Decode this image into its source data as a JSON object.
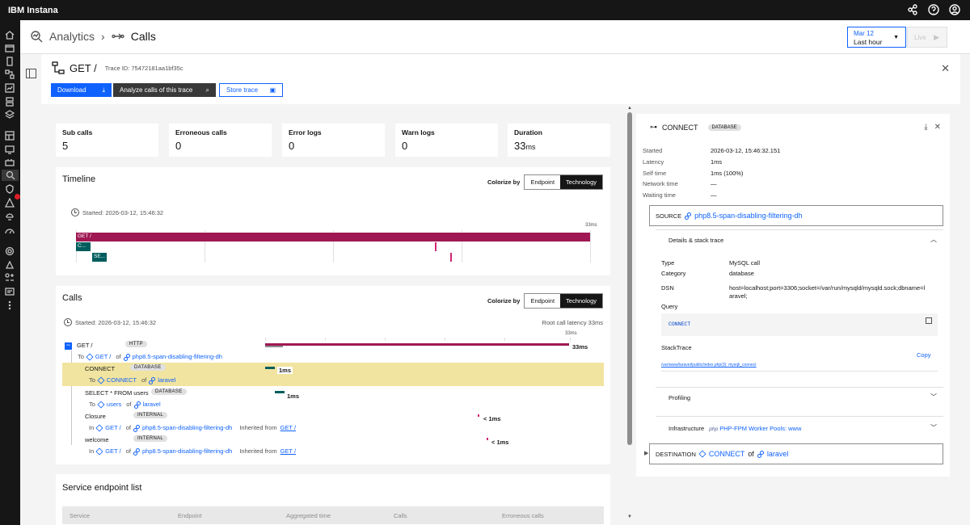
{
  "topbar": {
    "brand": "IBM Instana",
    "icons": [
      "share-icon",
      "help-icon",
      "user-icon"
    ]
  },
  "sidenav": {
    "alert_badge": "6"
  },
  "breadcrumb": {
    "parent": "Analytics",
    "current": "Calls"
  },
  "time_picker": {
    "date": "Mar 12",
    "range": "Last hour"
  },
  "live_button": {
    "label": "Live"
  },
  "trace": {
    "title": "GET /",
    "trace_id": "Trace ID: 75472181aa1bf35c",
    "buttons": {
      "download": "Download",
      "analyze": "Analyze calls of this trace",
      "store": "Store trace"
    }
  },
  "stats": [
    {
      "label": "Sub calls",
      "value": "5",
      "unit": ""
    },
    {
      "label": "Erroneous calls",
      "value": "0",
      "unit": ""
    },
    {
      "label": "Error logs",
      "value": "0",
      "unit": ""
    },
    {
      "label": "Warn logs",
      "value": "0",
      "unit": ""
    },
    {
      "label": "Duration",
      "value": "33",
      "unit": "ms"
    }
  ],
  "timeline": {
    "title": "Timeline",
    "colorize_label": "Colorize by",
    "colorize_options": [
      "Endpoint",
      "Technology"
    ],
    "colorize_selected": "Technology",
    "started": "Started: 2026-03-12, 15:46:32",
    "axis_max": "33ms",
    "bars": [
      {
        "label": "GET /",
        "color": "#9f1853"
      },
      {
        "label": "C...",
        "color": "#005d5d"
      },
      {
        "label": "SE...",
        "color": "#005d5d"
      }
    ]
  },
  "calls": {
    "title": "Calls",
    "colorize_label": "Colorize by",
    "colorize_options": [
      "Endpoint",
      "Technology"
    ],
    "started": "Started: 2026-03-12, 15:46:32",
    "root_latency": "Root call latency 33ms",
    "axis_max": "33ms",
    "rows": [
      {
        "name": "GET /",
        "tag": "HTTP",
        "prefix": "To",
        "endpoint": "GET /",
        "of": "of",
        "service": "php8.5-span-disabling-filtering-dh",
        "latency": "33ms",
        "inherited_label": "",
        "inherited_link": ""
      },
      {
        "name": "CONNECT",
        "tag": "DATABASE",
        "prefix": "To",
        "endpoint": "CONNECT",
        "of": "of",
        "service": "laravel",
        "latency": "1ms",
        "inherited_label": "",
        "inherited_link": ""
      },
      {
        "name": "SELECT * FROM users",
        "tag": "DATABASE",
        "prefix": "To",
        "endpoint": "users",
        "of": "of",
        "service": "laravel",
        "latency": "1ms",
        "inherited_label": "",
        "inherited_link": ""
      },
      {
        "name": "Closure",
        "tag": "INTERNAL",
        "prefix": "In",
        "endpoint": "GET /",
        "of": "of",
        "service": "php8.5-span-disabling-filtering-dh",
        "latency": "< 1ms",
        "inherited_label": "Inherited from",
        "inherited_link": "GET /"
      },
      {
        "name": "welcome",
        "tag": "INTERNAL",
        "prefix": "In",
        "endpoint": "GET /",
        "of": "of",
        "service": "php8.5-span-disabling-filtering-dh",
        "latency": "< 1ms",
        "inherited_label": "Inherited from",
        "inherited_link": "GET /"
      }
    ]
  },
  "service_endpoint_list": {
    "title": "Service endpoint list",
    "columns": [
      "Service",
      "Endpoint",
      "Aggregated time",
      "Calls",
      "Erroneous calls"
    ]
  },
  "detail": {
    "title": "CONNECT",
    "tag": "DATABASE",
    "fields": [
      {
        "k": "Started",
        "v": "2026-03-12, 15:46:32.151"
      },
      {
        "k": "Latency",
        "v": "1ms"
      },
      {
        "k": "Self time",
        "v": "1ms (100%)"
      },
      {
        "k": "Network time",
        "v": "—"
      },
      {
        "k": "Waiting time",
        "v": "—"
      }
    ],
    "source_label": "SOURCE",
    "source_link": "php8.5-span-disabling-filtering-dh",
    "details_title": "Details & stack trace",
    "details": [
      {
        "k": "Type",
        "v": "MySQL call"
      },
      {
        "k": "Category",
        "v": "database"
      },
      {
        "k": "DSN",
        "v": "host=localhost;port=3306;socket=/var/run/mysqld/mysqld.sock;dbname=l",
        "v2": "aravel;"
      }
    ],
    "query_label": "Query",
    "query": "CONNECT",
    "stacktrace_label": "StackTrace",
    "copy_label": "Copy",
    "stacktrace_line": "/var/www/laravel/public/index.php(3): mysqli_connect",
    "profiling_label": "Profiling",
    "infra_label": "Infrastructure",
    "infra_link": "PHP-FPM Worker Pools: www",
    "infra_logo": "php",
    "destination_label": "DESTINATION",
    "destination_link": "CONNECT",
    "destination_of": "of",
    "destination_service": "laravel"
  }
}
